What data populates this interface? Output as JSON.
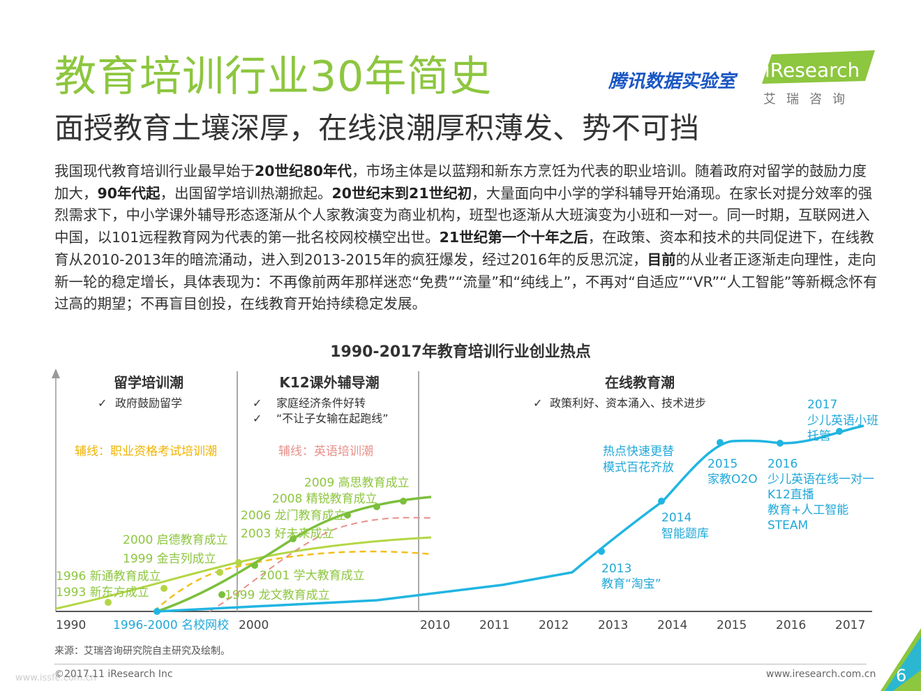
{
  "header": {
    "title": "教育培训行业30年简史",
    "subtitle": "面授教育土壤深厚，在线浪潮厚积薄发、势不可挡",
    "tencent_logo": "腾讯数据实验室",
    "iresearch_logo": "iResearch",
    "iresearch_cn": "艾瑞咨询"
  },
  "body_paragraph": [
    {
      "t": "我国现代教育培训行业最早始于"
    },
    {
      "t": "20世纪80年代",
      "b": true
    },
    {
      "t": "，市场主体是以蓝翔和新东方烹饪为代表的职业培训。随着政府对留学的鼓励力度加大，"
    },
    {
      "t": "90年代起",
      "b": true
    },
    {
      "t": "，出国留学培训热潮掀起。"
    },
    {
      "t": "20世纪末到21世纪初",
      "b": true
    },
    {
      "t": "，大量面向中小学的学科辅导开始涌现。在家长对提分效率的强烈需求下，中小学课外辅导形态逐渐从个人家教演变为商业机构，班型也逐渐从大班演变为小班和一对一。同一时期，互联网进入中国，以101远程教育网为代表的第一批名校网校横空出世。"
    },
    {
      "t": "21世纪第一个十年之后",
      "b": true
    },
    {
      "t": "，在政策、资本和技术的共同促进下，在线教育从2010-2013年的暗流涌动，进入到2013-2015年的疯狂爆发，经过2016年的反思沉淀，"
    },
    {
      "t": "目前",
      "b": true
    },
    {
      "t": "的从业者正逐渐走向理性，走向新一轮的稳定增长，具体表现为：不再像前两年那样迷恋“免费”“流量”和“纯线上”，不再对“自适应”“VR”“人工智能”等新概念怀有过高的期望；不再盲目创投，在线教育开始持续稳定发展。"
    }
  ],
  "chart_title": "1990-2017年教育培训行业创业热点",
  "chart": {
    "phases": [
      {
        "name": "留学培训潮",
        "checks": [
          "政府鼓励留学"
        ],
        "sub": "辅线：职业资格考试培训潮",
        "sub_color": "#f0b400"
      },
      {
        "name": "K12课外辅导潮",
        "checks": [
          "家庭经济条件好转",
          "“不让子女输在起跑线”"
        ],
        "sub": "辅线：英语培训潮",
        "sub_color": "#e8908a"
      },
      {
        "name": "在线教育潮",
        "checks": [
          "政策利好、资本涌入、技术进步"
        ]
      }
    ],
    "check_mark": "✓",
    "axis_labels": [
      "1990",
      "2000",
      "2010",
      "2011",
      "2012",
      "2013",
      "2014",
      "2015",
      "2016",
      "2017"
    ],
    "axis_special": "1996-2000 名校网校",
    "events_green": [
      "1993 新东方成立",
      "1996 新通教育成立",
      "1999 金吉列成立",
      "2000 启德教育成立",
      "2001 学大教育成立",
      "1999 龙文教育成立",
      "2003 好未来成立",
      "2006 龙门教育成立",
      "2008 精锐教育成立",
      "2009 高思教育成立"
    ],
    "events_blue": [
      [
        "2013",
        "教育“淘宝”"
      ],
      [
        "2014",
        "智能题库"
      ],
      [
        "热点快速更替",
        "模式百花齐放"
      ],
      [
        "2015",
        "家教O2O"
      ],
      [
        "2016",
        "少儿英语在线一对一",
        "K12直播",
        "教育+人工智能",
        "STEAM"
      ],
      [
        "2017",
        "少儿英语小班",
        "托管"
      ]
    ],
    "colors": {
      "green_dark": "#7cbf3d",
      "green_light": "#b4d645",
      "yellow_dash": "#f4bf1c",
      "pink_dash": "#e8908a",
      "blue": "#21b5e1",
      "green_text": "#8dc63f",
      "blue_text": "#21a8d8"
    }
  },
  "footer": {
    "source": "来源：艾瑞咨询研究院自主研究及绘制。",
    "copyright": "©2017.11 iResearch Inc",
    "website": "www.iresearch.com.cn",
    "page": "6",
    "watermark": "www.issfe.com.cn"
  }
}
